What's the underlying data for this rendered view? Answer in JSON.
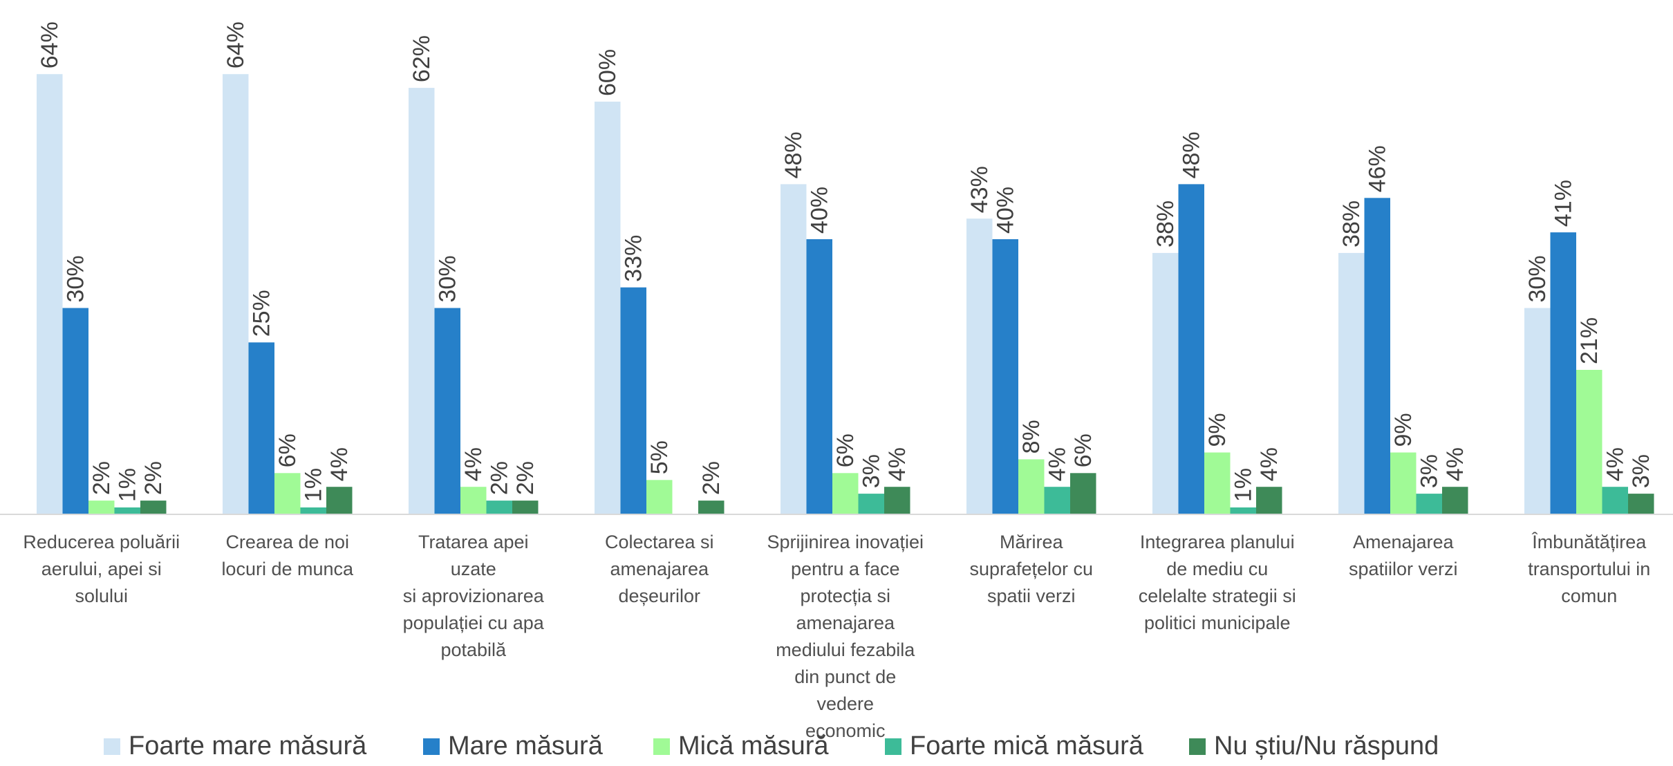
{
  "chart_data": {
    "type": "bar",
    "categories": [
      "Reducerea poluării aerului, apei si solului",
      "Crearea de noi locuri de munca",
      "Tratarea apei uzate si aprovizionarea populației cu apa potabilă",
      "Colectarea si amenajarea deșeurilor",
      "Sprijinirea inovației pentru a face protecția si amenajarea mediului fezabila din punct de vedere economic",
      "Mărirea suprafețelor cu spatii verzi",
      "Integrarea planului de mediu cu celelalte strategii si politici municipale",
      "Amenajarea spatiilor verzi",
      "Îmbunătățirea transportului in comun"
    ],
    "category_lines": [
      [
        "Reducerea poluării",
        "aerului, apei si",
        "solului"
      ],
      [
        "Crearea de noi",
        "locuri de munca"
      ],
      [
        "Tratarea apei uzate",
        "si aprovizionarea",
        "populației cu apa",
        "potabilă"
      ],
      [
        "Colectarea si",
        "amenajarea",
        "deșeurilor"
      ],
      [
        "Sprijinirea inovației",
        "pentru a face",
        "protecția si",
        "amenajarea",
        "mediului fezabila",
        "din punct de vedere",
        "economic"
      ],
      [
        "Mărirea",
        "suprafețelor cu",
        "spatii verzi"
      ],
      [
        "Integrarea planului",
        "de mediu cu",
        "celelalte strategii si",
        "politici municipale"
      ],
      [
        "Amenajarea",
        "spatiilor verzi"
      ],
      [
        "Îmbunătățirea",
        "transportului in",
        "comun"
      ]
    ],
    "series": [
      {
        "name": "Foarte mare măsură",
        "color": "#d0e4f4",
        "values": [
          64,
          64,
          62,
          60,
          48,
          43,
          38,
          38,
          30
        ]
      },
      {
        "name": "Mare măsură",
        "color": "#2680c9",
        "values": [
          30,
          25,
          30,
          33,
          40,
          40,
          48,
          46,
          41
        ]
      },
      {
        "name": "Mică măsură",
        "color": "#a0fa96",
        "values": [
          2,
          6,
          4,
          5,
          6,
          8,
          9,
          9,
          21
        ]
      },
      {
        "name": "Foarte mică măsură",
        "color": "#3dbb98",
        "values": [
          1,
          1,
          2,
          null,
          3,
          4,
          1,
          3,
          4
        ]
      },
      {
        "name": "Nu știu/Nu răspund",
        "color": "#3e8a58",
        "values": [
          2,
          4,
          2,
          2,
          4,
          6,
          4,
          4,
          3
        ]
      }
    ],
    "value_suffix": "%",
    "ylim": [
      0,
      70
    ],
    "legend_position": "bottom",
    "grid": false,
    "title": "",
    "xlabel": "",
    "ylabel": ""
  }
}
